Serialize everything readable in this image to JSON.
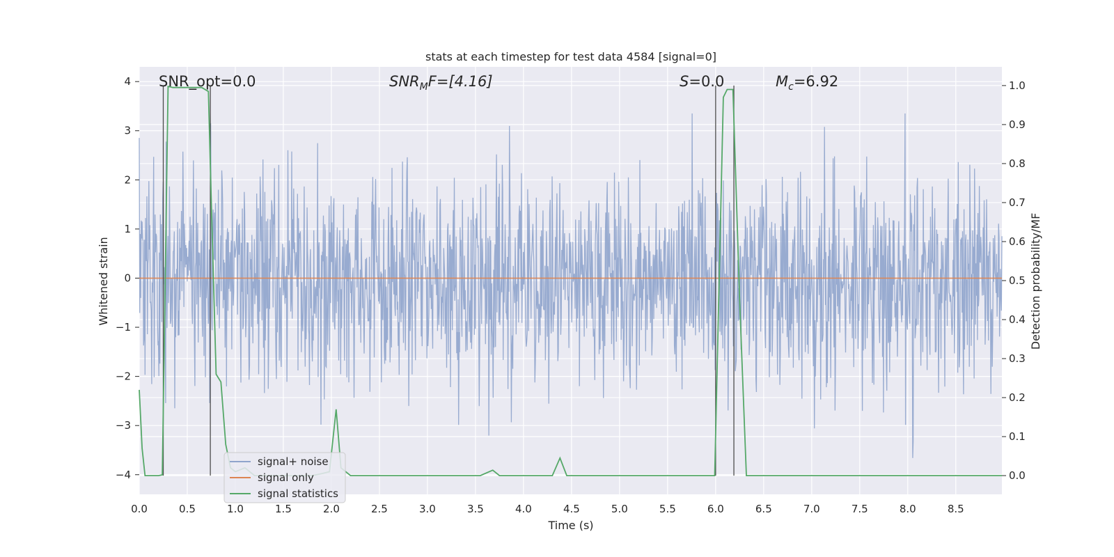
{
  "chart_data": {
    "type": "line",
    "title": "stats at each timestep for test data 4584 [signal=0]",
    "xlabel": "Time (s)",
    "ylabel_left": "Whitened strain",
    "ylabel_right": "Detection probability/MF",
    "xlim": [
      0.0,
      8.98
    ],
    "ylim_left": [
      -4.4,
      4.3
    ],
    "ylim_right": [
      -0.048,
      1.048
    ],
    "x_ticks": [
      "0.0",
      "0.5",
      "1.0",
      "1.5",
      "2.0",
      "2.5",
      "3.0",
      "3.5",
      "4.0",
      "4.5",
      "5.0",
      "5.5",
      "6.0",
      "6.5",
      "7.0",
      "7.5",
      "8.0",
      "8.5"
    ],
    "y_ticks_left": [
      "4",
      "3",
      "2",
      "1",
      "0",
      "−1",
      "−2",
      "−3",
      "−4"
    ],
    "y_ticks_right": [
      "1.0",
      "0.9",
      "0.8",
      "0.7",
      "0.6",
      "0.5",
      "0.4",
      "0.3",
      "0.2",
      "0.1",
      "0.0"
    ],
    "grid": true,
    "legend_placement": "lower-left",
    "annotations": {
      "snr_opt": "SNR_opt=0.0",
      "snr_mf_main": "SNR",
      "snr_mf_sub": "M",
      "snr_mf_rest": "F=[4.16]",
      "s_label": "S",
      "s_rest": "=0.0",
      "mc_main": "M",
      "mc_sub": "c",
      "mc_rest": "=6.92"
    },
    "vertical_lines_x": [
      0.25,
      0.74,
      6.0,
      6.19
    ],
    "series": [
      {
        "name": "signal+ noise",
        "axis": "left",
        "description_values": "whitened noise fluctuating roughly between -2.3 and 2.3 with spikes to about 3.4 and -4.0",
        "color": "#8fa4cc"
      },
      {
        "name": "signal only",
        "axis": "left",
        "x": [
          0.0,
          8.98
        ],
        "y": [
          0.0,
          0.0
        ],
        "color": "#dd8452"
      },
      {
        "name": "signal statistics",
        "axis": "right",
        "color": "#55a868",
        "x": [
          0.0,
          0.03,
          0.06,
          0.1,
          0.15,
          0.2,
          0.24,
          0.27,
          0.3,
          0.35,
          0.5,
          0.65,
          0.72,
          0.75,
          0.8,
          0.85,
          0.9,
          0.95,
          1.0,
          1.1,
          1.2,
          1.5,
          1.8,
          1.9,
          1.98,
          2.05,
          2.1,
          2.2,
          3.0,
          3.55,
          3.68,
          3.75,
          4.0,
          4.3,
          4.38,
          4.45,
          5.0,
          5.5,
          5.99,
          6.08,
          6.12,
          6.18,
          6.25,
          6.32,
          6.5,
          7.0,
          8.0,
          8.98
        ],
        "y": [
          0.22,
          0.07,
          0.0,
          0.0,
          0.0,
          0.0,
          0.002,
          0.5,
          0.998,
          0.995,
          0.995,
          0.995,
          0.985,
          0.7,
          0.26,
          0.24,
          0.08,
          0.02,
          0.01,
          0.02,
          0.0,
          0.0,
          0.0,
          0.005,
          0.01,
          0.17,
          0.02,
          0.0,
          0.0,
          0.0,
          0.014,
          0.0,
          0.0,
          0.0,
          0.045,
          0.0,
          0.0,
          0.0,
          0.0,
          0.97,
          0.99,
          0.99,
          0.45,
          0.0,
          0.0,
          0.0,
          0.0,
          0.0
        ]
      }
    ]
  },
  "colors": {
    "plot_bg": "#eaeaf2",
    "grid": "#ffffff",
    "noise": "#8fa4cc",
    "signal_only": "#dd8452",
    "statistics": "#55a868",
    "vline": "#4c4c4c"
  }
}
